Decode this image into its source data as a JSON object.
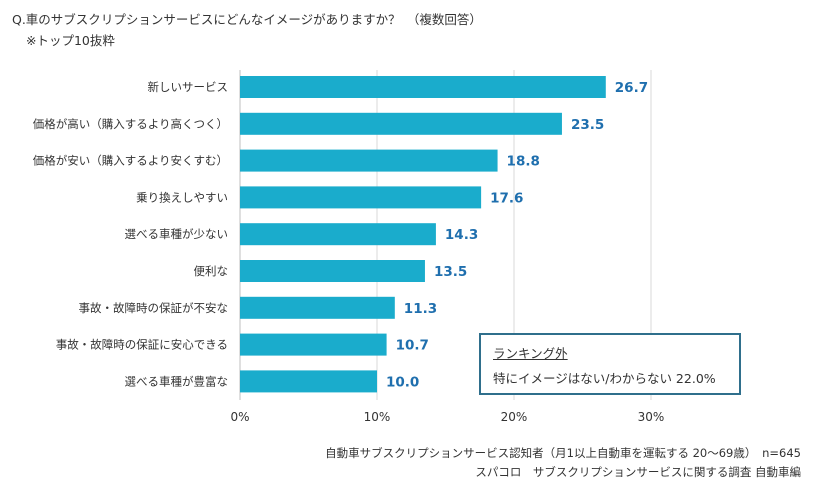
{
  "title": "Q.車のサブスクリプションサービスにどんなイメージがありますか？　（複数回答）",
  "subtitle": "※トップ10抜粋",
  "chart_data": {
    "type": "bar",
    "orientation": "horizontal",
    "categories": [
      "新しいサービス",
      "価格が高い（購入するより高くつく）",
      "価格が安い（購入するより安くすむ）",
      "乗り換えしやすい",
      "選べる車種が少ない",
      "便利な",
      "事故・故障時の保証が不安な",
      "事故・故障時の保証に安心できる",
      "選べる車種が豊富な"
    ],
    "values": [
      26.7,
      23.5,
      18.8,
      17.6,
      14.3,
      13.5,
      11.3,
      10.7,
      10.0
    ],
    "value_labels": [
      "26.7",
      "23.5",
      "18.8",
      "17.6",
      "14.3",
      "13.5",
      "11.3",
      "10.7",
      "10.0"
    ],
    "xlim": [
      0,
      30
    ],
    "xticks": [
      "0%",
      "10%",
      "20%",
      "30%"
    ],
    "grid": true,
    "bar_color": "#1aaccc",
    "label_color": "#1f6fae"
  },
  "callout": {
    "heading": "ランキング外",
    "text": "特にイメージはない/わからない 22.0%"
  },
  "notes": [
    "自動車サブスクリプションサービス認知者（月1以上自動車を運転する 20～69歳）　n=645",
    "スパコロ　サブスクリプションサービスに関する調査 自動車編"
  ]
}
